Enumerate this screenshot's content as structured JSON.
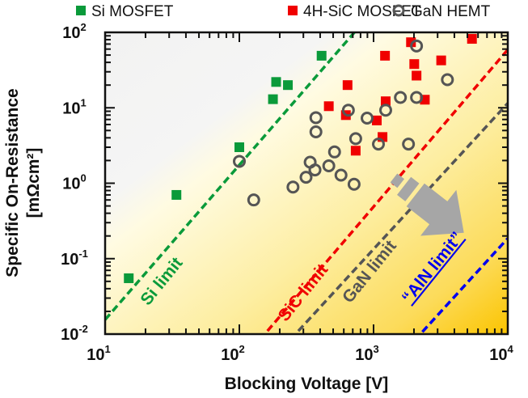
{
  "chart_data": {
    "type": "scatter",
    "xlabel": "Blocking Voltage [V]",
    "ylabel": "Specific On-Resistance",
    "ylabel_units": "[mΩcm²]",
    "xscale": "log",
    "yscale": "log",
    "xlim": [
      10,
      10000
    ],
    "ylim": [
      0.01,
      100
    ],
    "x_ticks": [
      {
        "base": "10",
        "exp": "1",
        "value": 10
      },
      {
        "base": "10",
        "exp": "2",
        "value": 100
      },
      {
        "base": "10",
        "exp": "3",
        "value": 1000
      },
      {
        "base": "10",
        "exp": "4",
        "value": 10000
      }
    ],
    "y_ticks": [
      {
        "base": "10",
        "exp": "2",
        "value": 100
      },
      {
        "base": "10",
        "exp": "1",
        "value": 10
      },
      {
        "base": "10",
        "exp": "0",
        "value": 1
      },
      {
        "base": "10",
        "exp": "-1",
        "value": 0.1
      },
      {
        "base": "10",
        "exp": "-2",
        "value": 0.01
      }
    ],
    "legend_position": "top",
    "series": [
      {
        "name": "Si MOSFET",
        "marker": "square",
        "color": "#0a9a3a",
        "points": [
          [
            15,
            0.055
          ],
          [
            34,
            0.7
          ],
          [
            100,
            3
          ],
          [
            178,
            13
          ],
          [
            188,
            22
          ],
          [
            230,
            20
          ],
          [
            410,
            49
          ]
        ]
      },
      {
        "name": "4H-SiC MOSFET",
        "marker": "square",
        "color": "#f00000",
        "points": [
          [
            464,
            10.5
          ],
          [
            640,
            20
          ],
          [
            622,
            8
          ],
          [
            736,
            2.7
          ],
          [
            1057,
            6.8
          ],
          [
            1166,
            4.1
          ],
          [
            1217,
            49
          ],
          [
            1231,
            12.2
          ],
          [
            1900,
            74
          ],
          [
            2010,
            38
          ],
          [
            2090,
            26.7
          ],
          [
            2410,
            12.8
          ],
          [
            3190,
            42.5
          ],
          [
            5410,
            82
          ]
        ]
      },
      {
        "name": "GaN HEMT",
        "marker": "open-circle",
        "color": "#555555",
        "points": [
          [
            100,
            1.95
          ],
          [
            128,
            0.6
          ],
          [
            251,
            0.89
          ],
          [
            314,
            1.2
          ],
          [
            337,
            1.9
          ],
          [
            366,
            1.5
          ],
          [
            372,
            7.4
          ],
          [
            372,
            4.8
          ],
          [
            464,
            1.7
          ],
          [
            512,
            2.6
          ],
          [
            572,
            1.28
          ],
          [
            716,
            0.97
          ],
          [
            736,
            3.9
          ],
          [
            649,
            9.3
          ],
          [
            895,
            7.3
          ],
          [
            1087,
            3.3
          ],
          [
            1231,
            9.3
          ],
          [
            1585,
            13.7
          ],
          [
            1820,
            3.3
          ],
          [
            2090,
            13.7
          ],
          [
            2090,
            66
          ],
          [
            3550,
            23.6
          ]
        ]
      }
    ],
    "limit_lines": [
      {
        "name": "Si limit",
        "label": "Si limit",
        "color": "#0a9a3a",
        "points": [
          [
            10,
            0.0155
          ],
          [
            720,
            100
          ]
        ]
      },
      {
        "name": "SiC limit",
        "label": "SiC limit",
        "color": "#f00000",
        "points": [
          [
            162,
            0.011
          ],
          [
            10000,
            59
          ]
        ]
      },
      {
        "name": "GaN limit",
        "label": "GaN limit",
        "color": "#555555",
        "points": [
          [
            275,
            0.011
          ],
          [
            10000,
            11.5
          ]
        ]
      },
      {
        "name": "AlN limit",
        "label": "“AlN limit”",
        "color": "#0000ee",
        "points": [
          [
            2310,
            0.0107
          ],
          [
            10000,
            0.186
          ]
        ]
      }
    ],
    "annotations": [
      "arrow pointing toward lower on-resistance / higher voltage"
    ]
  }
}
